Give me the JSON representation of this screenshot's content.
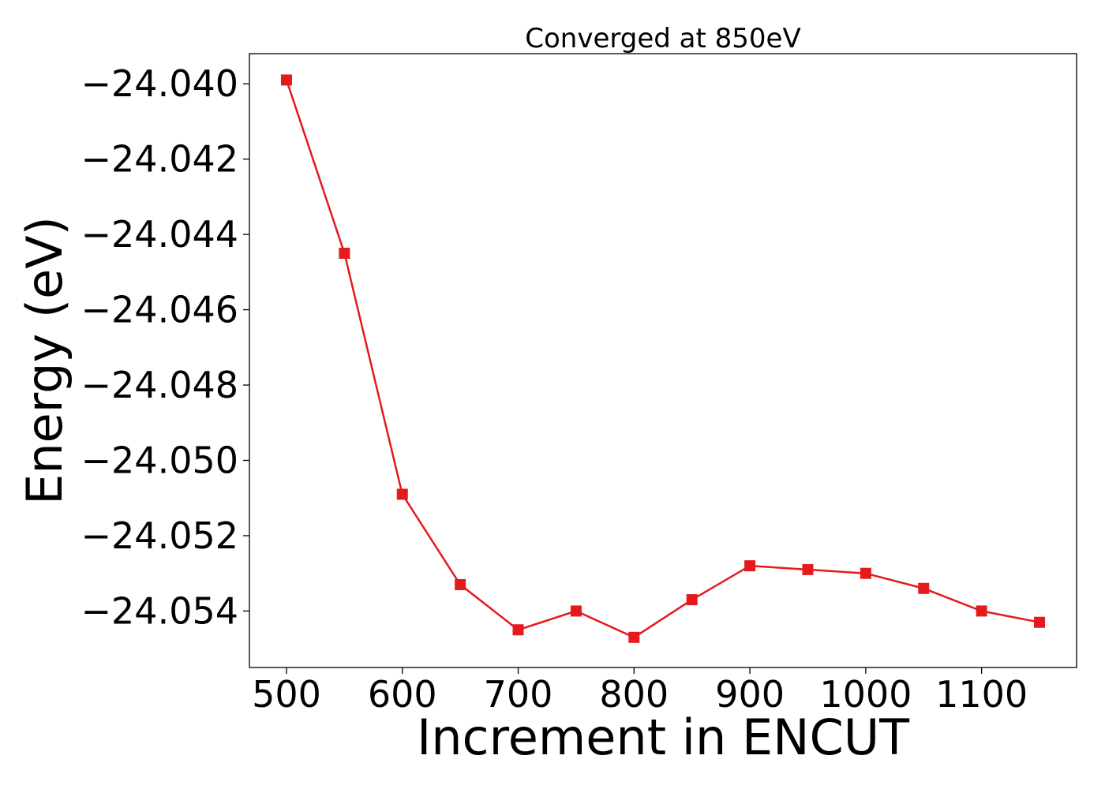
{
  "chart_data": {
    "type": "line",
    "title": "Converged at 850eV",
    "xlabel": "Increment in ENCUT",
    "ylabel": "Energy (eV)",
    "xlim": [
      468,
      1182
    ],
    "ylim": [
      -24.0555,
      -24.0392
    ],
    "xticks": [
      500,
      600,
      700,
      800,
      900,
      1000,
      1100
    ],
    "xtick_labels": [
      "500",
      "600",
      "700",
      "800",
      "900",
      "1000",
      "1100"
    ],
    "yticks": [
      -24.04,
      -24.042,
      -24.044,
      -24.046,
      -24.048,
      -24.05,
      -24.052,
      -24.054
    ],
    "ytick_labels": [
      "−24.040",
      "−24.042",
      "−24.044",
      "−24.046",
      "−24.048",
      "−24.050",
      "−24.052",
      "−24.054"
    ],
    "grid": false,
    "series": [
      {
        "color": "#e41a1c",
        "marker": "square",
        "x": [
          500,
          550,
          600,
          650,
          700,
          750,
          800,
          850,
          900,
          950,
          1000,
          1050,
          1100,
          1150
        ],
        "y": [
          -24.0399,
          -24.0445,
          -24.0509,
          -24.0533,
          -24.0545,
          -24.054,
          -24.0547,
          -24.0537,
          -24.0528,
          -24.0529,
          -24.053,
          -24.0534,
          -24.054,
          -24.0543
        ]
      }
    ]
  }
}
